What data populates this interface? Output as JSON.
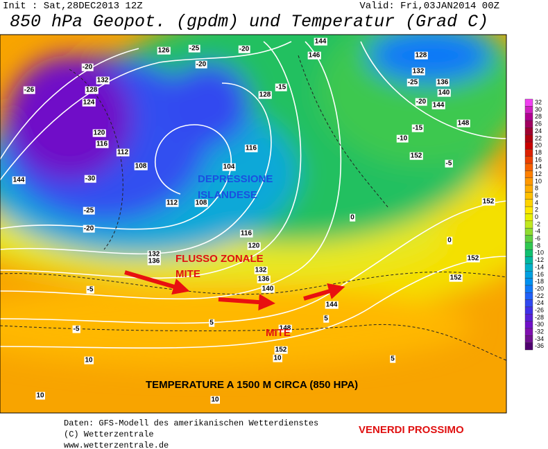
{
  "header": {
    "init": "Init : Sat,28DEC2013 12Z",
    "valid": "Valid: Fri,03JAN2014 00Z",
    "title": "850 hPa Geopot. (gpdm) und Temperatur (Grad C)"
  },
  "map": {
    "contour_labels": [
      126,
      -25,
      -20,
      144,
      146,
      128,
      -20,
      -20,
      132,
      -25,
      136,
      -26,
      132,
      128,
      140,
      124,
      128,
      -15,
      144,
      -20,
      120,
      116,
      112,
      108,
      104,
      116,
      148,
      -15,
      152,
      -5,
      144,
      -30,
      112,
      108,
      152,
      -25,
      -20,
      116,
      120,
      132,
      136,
      132,
      136,
      140,
      144,
      148,
      152,
      152,
      152,
      -5,
      5,
      5,
      -5,
      10,
      10,
      5,
      10,
      10,
      0,
      0,
      -10
    ],
    "annotations": [
      "DEPRESSIONE",
      "ISLANDESE",
      "FLUSSO ZONALE",
      "MITE",
      "MITE",
      "TEMPERATURE A 1500 M CIRCA (850 HPA)"
    ]
  },
  "colorbar": {
    "values": [
      32,
      30,
      28,
      26,
      24,
      22,
      20,
      18,
      16,
      14,
      12,
      10,
      8,
      6,
      4,
      2,
      0,
      -2,
      -4,
      -6,
      -8,
      -10,
      -12,
      -14,
      -16,
      -18,
      -20,
      -22,
      -24,
      -26,
      -28,
      -30,
      -32,
      -34,
      -36
    ],
    "colors": [
      "#f040f0",
      "#d020c0",
      "#b00090",
      "#a00060",
      "#a00030",
      "#b00010",
      "#c80000",
      "#dc2000",
      "#ec4000",
      "#f86000",
      "#ff8000",
      "#ff9800",
      "#ffac00",
      "#ffc000",
      "#ffd400",
      "#ffe800",
      "#e8f000",
      "#c0e820",
      "#90dc30",
      "#60d040",
      "#30c850",
      "#10c070",
      "#00b8a0",
      "#00b0c8",
      "#00a0e0",
      "#0090f0",
      "#1078f8",
      "#2060f8",
      "#3048f0",
      "#4030e8",
      "#5820d8",
      "#7010c8",
      "#8010b0",
      "#701090",
      "#500070"
    ]
  },
  "footer": {
    "source": [
      "Daten: GFS-Modell des amerikanischen Wetterdienstes",
      "(C) Wetterzentrale",
      "www.wetterzentrale.de"
    ],
    "note": "VENERDI PROSSIMO"
  }
}
